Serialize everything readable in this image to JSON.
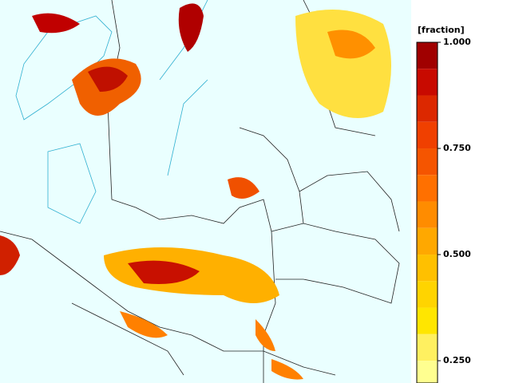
{
  "colorbar": {
    "label": "[fraction]",
    "lim": [
      0.1975,
      1.0
    ],
    "bounds": [
      1.0,
      0.9375,
      0.875,
      0.8125,
      0.75,
      0.6875,
      0.625,
      0.5625,
      0.5,
      0.4375,
      0.375,
      0.3125,
      0.25,
      0.1875
    ],
    "colors": [
      "#a00000",
      "#c80a00",
      "#dc2800",
      "#f04000",
      "#f55500",
      "#ff7000",
      "#ff8c00",
      "#ffa800",
      "#ffc000",
      "#ffd400",
      "#ffe600",
      "#fff060",
      "#ffff90"
    ],
    "ticks": [
      {
        "value": 1.0,
        "label": "1.000"
      },
      {
        "value": 0.75,
        "label": "0.750"
      },
      {
        "value": 0.5,
        "label": "0.500"
      },
      {
        "value": 0.25,
        "label": "0.250"
      }
    ]
  }
}
